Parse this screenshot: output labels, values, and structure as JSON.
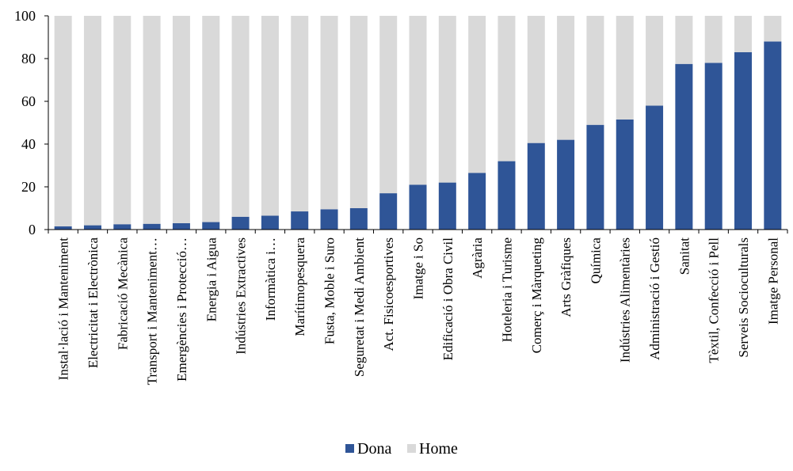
{
  "chart_data": {
    "type": "bar",
    "stacked": true,
    "title": "",
    "xlabel": "",
    "ylabel": "",
    "ylim": [
      0,
      100
    ],
    "yticks": [
      0,
      20,
      40,
      60,
      80,
      100
    ],
    "grid": false,
    "legend": "bottom-center",
    "categories": [
      "Instal·lació i Manteniment",
      "Electricitat i Electrònica",
      "Fabricació Mecànica",
      "Transport i Manteniment…",
      "Emergències i Protecció…",
      "Energia i Aigua",
      "Indústries Extractives",
      "Informàtica i…",
      "Marítimopesquera",
      "Fusta, Moble i Suro",
      "Seguretat i Medi Ambient",
      "Act. Fisicoesportives",
      "Imatge i So",
      "Edificació i Obra Civil",
      "Agrària",
      "Hoteleria i Turisme",
      "Comerç i Màrqueting",
      "Arts Gràfiques",
      "Química",
      "Indústries Alimentàries",
      "Administració i Gestió",
      "Sanitat",
      "Tèxtil, Confecció i Pell",
      "Serveis Socioculturals",
      "Imatge Personal"
    ],
    "series": [
      {
        "name": "Dona",
        "color": "#2F5597",
        "values": [
          1.5,
          2,
          2.5,
          2.7,
          3,
          3.5,
          6,
          6.5,
          8.5,
          9.5,
          10,
          17,
          21,
          22,
          26.5,
          32,
          40.5,
          42,
          49,
          51.5,
          58,
          77.5,
          78,
          83,
          88
        ]
      },
      {
        "name": "Home",
        "color": "#D9D9D9",
        "values": [
          98.5,
          98,
          97.5,
          97.3,
          97,
          96.5,
          94,
          93.5,
          91.5,
          90.5,
          90,
          83,
          79,
          78,
          73.5,
          68,
          59.5,
          58,
          51,
          48.5,
          42,
          22.5,
          22,
          17,
          12
        ]
      }
    ]
  }
}
